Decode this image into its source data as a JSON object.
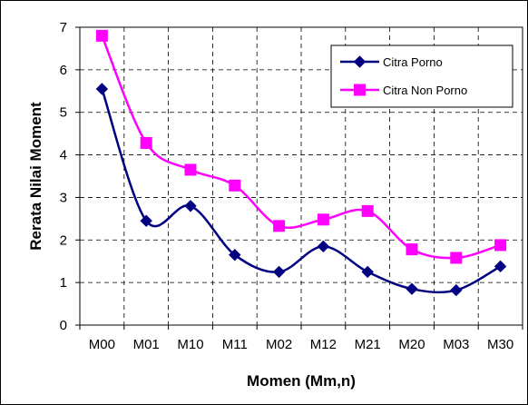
{
  "chart_data": {
    "type": "line",
    "categories": [
      "M00",
      "M01",
      "M10",
      "M11",
      "M02",
      "M12",
      "M21",
      "M20",
      "M03",
      "M30"
    ],
    "series": [
      {
        "name": "Citra Porno",
        "color": "#000080",
        "marker": "diamond",
        "values": [
          5.55,
          2.45,
          2.8,
          1.65,
          1.25,
          1.85,
          1.25,
          0.85,
          0.82,
          1.38
        ]
      },
      {
        "name": "Citra Non Porno",
        "color": "#ff00ff",
        "marker": "square",
        "values": [
          6.8,
          4.28,
          3.65,
          3.28,
          2.33,
          2.48,
          2.68,
          1.78,
          1.58,
          1.88
        ]
      }
    ],
    "xlabel": "Momen (Mm,n)",
    "ylabel": "Rerata Nilai Moment",
    "ylim": [
      0,
      7
    ],
    "yticks": [
      "0",
      "1",
      "2",
      "3",
      "4",
      "5",
      "6",
      "7"
    ],
    "grid": true,
    "smooth": true,
    "legend_position": "top-right"
  }
}
